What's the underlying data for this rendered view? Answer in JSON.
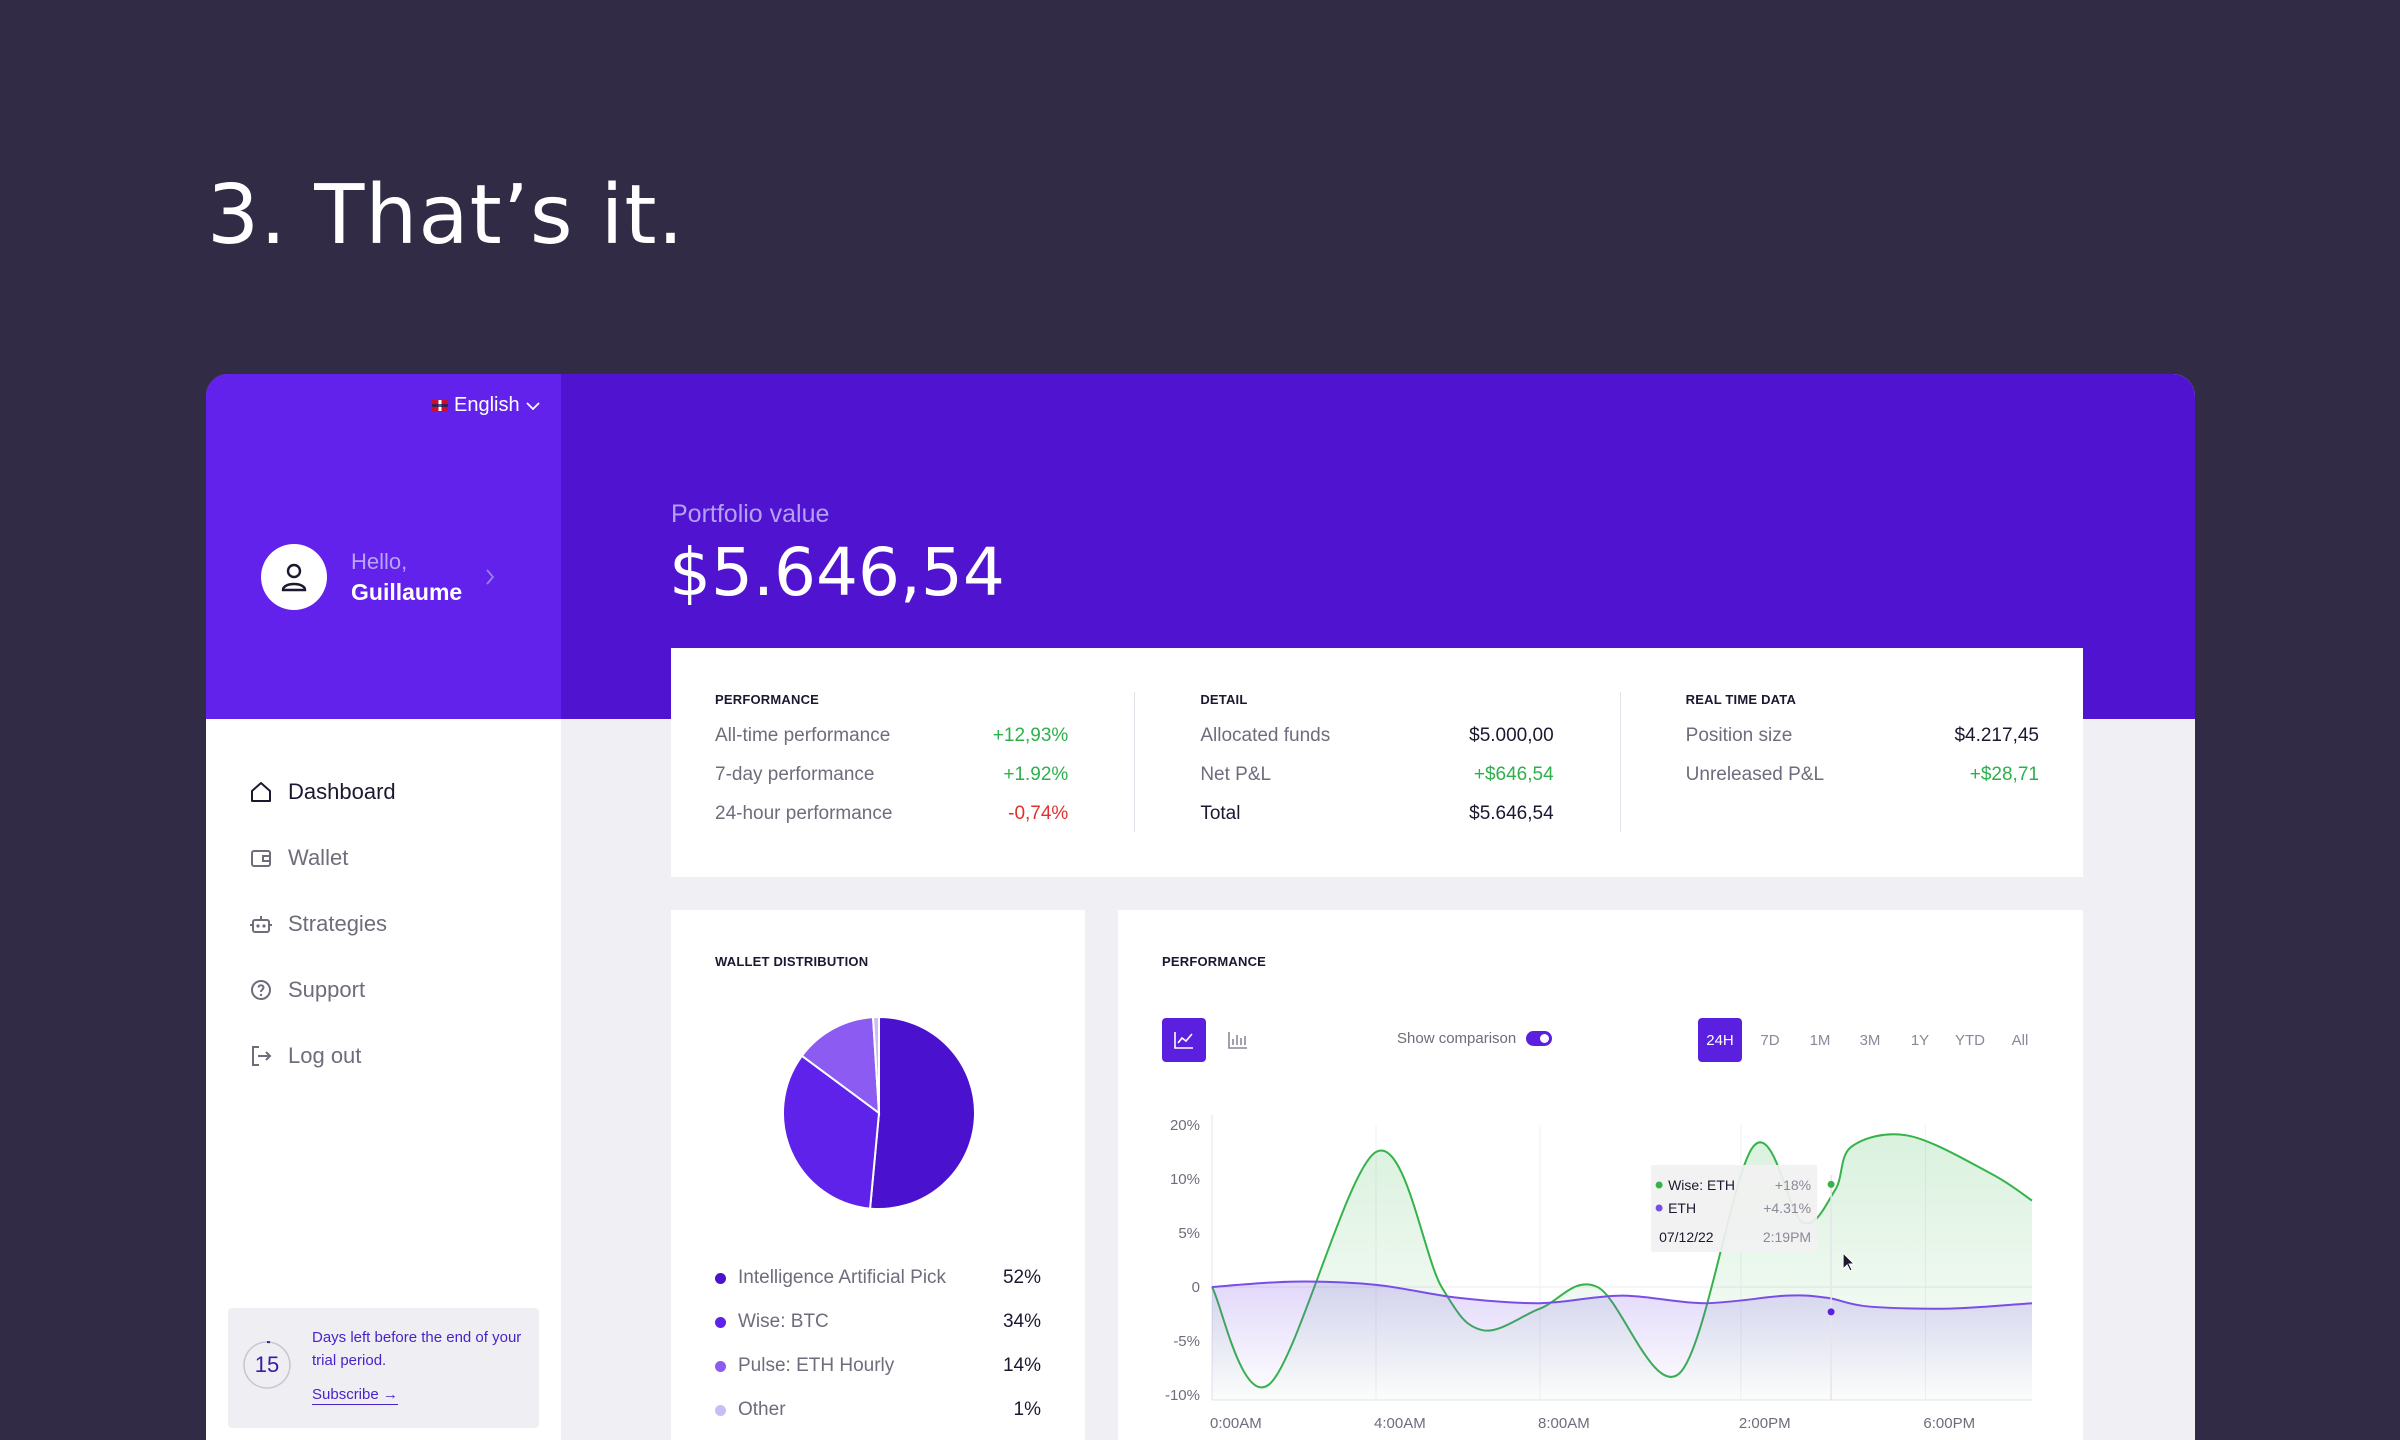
{
  "headline": "3. That’s it.",
  "language": "English",
  "user": {
    "greeting": "Hello,",
    "name": "Guillaume"
  },
  "nav": [
    {
      "label": "Dashboard",
      "icon": "home-icon",
      "active": true
    },
    {
      "label": "Wallet",
      "icon": "wallet-icon"
    },
    {
      "label": "Strategies",
      "icon": "robot-icon"
    },
    {
      "label": "Support",
      "icon": "help-icon"
    },
    {
      "label": "Log out",
      "icon": "logout-icon"
    }
  ],
  "trial": {
    "days": "15",
    "text": "Days left before the end of your trial period.",
    "link": "Subscribe →"
  },
  "portfolio": {
    "label": "Portfolio value",
    "value": "$5.646,54"
  },
  "performance": {
    "title": "PERFORMANCE",
    "rows": [
      {
        "label": "All-time performance",
        "value": "+12,93%"
      },
      {
        "label": "7-day performance",
        "value": "+1.92%"
      },
      {
        "label": "24-hour performance",
        "value": "-0,74%"
      }
    ]
  },
  "detail": {
    "title": "DETAIL",
    "rows": [
      {
        "label": "Allocated funds",
        "value": "$5.000,00"
      },
      {
        "label": "Net P&L",
        "value": "+$646,54"
      },
      {
        "label": "Total",
        "value": "$5.646,54"
      }
    ]
  },
  "realtime": {
    "title": "REAL TIME DATA",
    "rows": [
      {
        "label": "Position size",
        "value": "$4.217,45"
      },
      {
        "label": "Unreleased P&L",
        "value": "+$28,71"
      }
    ]
  },
  "wallet": {
    "title": "WALLET DISTRIBUTION",
    "items": [
      {
        "label": "Intelligence Artificial Pick",
        "pct": "52%",
        "value": 52,
        "color": "#4a12cf"
      },
      {
        "label": "Wise: BTC",
        "pct": "34%",
        "value": 34,
        "color": "#5e22ea"
      },
      {
        "label": "Pulse: ETH Hourly",
        "pct": "14%",
        "value": 14,
        "color": "#8c5cf2"
      },
      {
        "label": "Other",
        "pct": "1%",
        "value": 1,
        "color": "#c9bdf5"
      }
    ]
  },
  "chart": {
    "title": "PERFORMANCE",
    "compare_label": "Show comparison",
    "ranges": [
      "24H",
      "7D",
      "1M",
      "3M",
      "1Y",
      "YTD",
      "All"
    ],
    "active_range": "24H",
    "tooltip": {
      "s1_label": "Wise: ETH",
      "s1_value": "+18%",
      "s2_label": "ETH",
      "s2_value": "+4.31%",
      "date": "07/12/22",
      "time": "2:19PM"
    }
  },
  "chart_data": {
    "type": "line",
    "x_ticks": [
      "0:00AM",
      "4:00AM",
      "8:00AM",
      "2:00PM",
      "6:00PM"
    ],
    "y_ticks": [
      "20%",
      "10%",
      "5%",
      "0",
      "-5%",
      "-10%"
    ],
    "ylim": [
      -10,
      20
    ],
    "series": [
      {
        "name": "Wise: ETH",
        "color": "#35b34a",
        "x": [
          0,
          0.07,
          0.2,
          0.28,
          0.33,
          0.4,
          0.47,
          0.57,
          0.66,
          0.72,
          0.76,
          0.78,
          0.85,
          0.95,
          1.0
        ],
        "values": [
          0,
          -9,
          15,
          0,
          -4,
          -2,
          0,
          -8,
          16,
          6,
          9,
          16,
          18,
          11,
          8
        ]
      },
      {
        "name": "ETH",
        "color": "#7a4de8",
        "x": [
          0,
          0.1,
          0.2,
          0.3,
          0.4,
          0.5,
          0.6,
          0.7,
          0.75,
          0.8,
          0.9,
          1.0
        ],
        "values": [
          0,
          0.5,
          0.2,
          -1,
          -1.5,
          -0.8,
          -1.5,
          -0.8,
          -1,
          -1.8,
          -2,
          -1.5
        ]
      }
    ]
  }
}
